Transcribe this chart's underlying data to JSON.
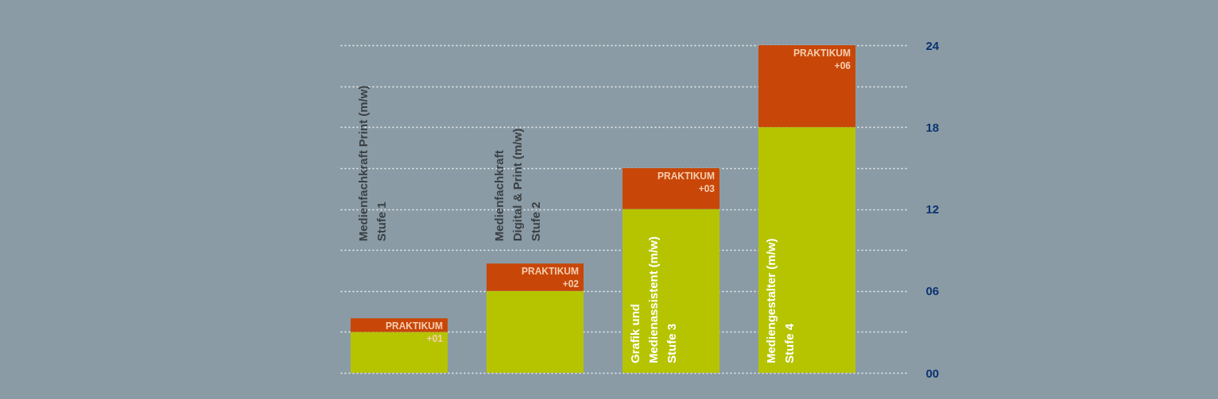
{
  "chart_data": {
    "type": "bar",
    "stacked": true,
    "categories": [
      "Medienfachkraft Print (m/w)\nStufe 1",
      "Medienfachkraft\nDigital & Print (m/w)\nStufe 2",
      "Grafik und\nMedienassistent (m/w)\nStufe 3",
      "Mediengestalter (m/w)\nStufe 4"
    ],
    "series": [
      {
        "color": "#b6c400",
        "values": [
          3,
          6,
          12,
          18
        ]
      },
      {
        "name": "PRAKTIKUM",
        "color": "#c84708",
        "values": [
          1,
          2,
          3,
          6
        ],
        "value_labels": [
          "+01",
          "+02",
          "+03",
          "+06"
        ]
      }
    ],
    "ylim": [
      0,
      24
    ],
    "yticks": [
      {
        "value": 0,
        "label": "00"
      },
      {
        "value": 3,
        "label": null
      },
      {
        "value": 6,
        "label": "06"
      },
      {
        "value": 9,
        "label": null
      },
      {
        "value": 12,
        "label": "12"
      },
      {
        "value": 15,
        "label": null
      },
      {
        "value": 18,
        "label": "18"
      },
      {
        "value": 21,
        "label": null
      },
      {
        "value": 24,
        "label": "24"
      }
    ],
    "grid": "y"
  }
}
